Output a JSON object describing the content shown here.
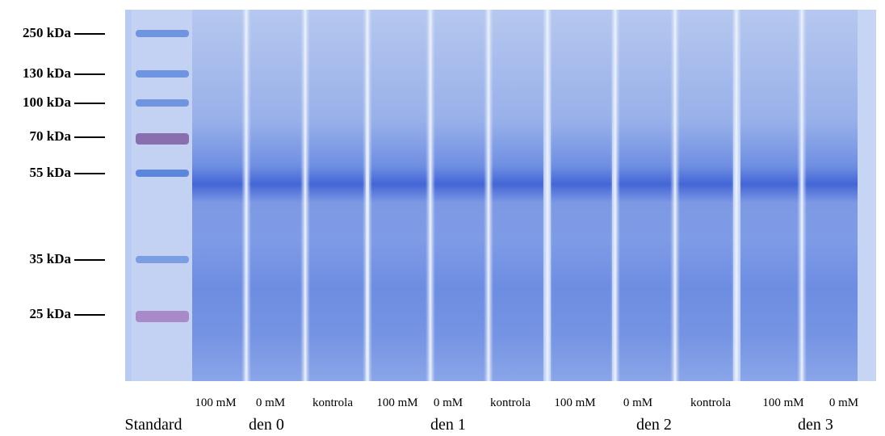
{
  "markers": [
    "250 kDa",
    "130 kDa",
    "100 kDa",
    "70 kDa",
    "55 kDa",
    "35 kDa",
    "25 kDa"
  ],
  "lanes": [
    "100 mM",
    "0 mM",
    "kontrola",
    "100 mM",
    "0 mM",
    "kontrola",
    "100 mM",
    "0 mM",
    "kontrola",
    "100 mM",
    "0 mM"
  ],
  "groups": [
    "Standard",
    "den 0",
    "den 1",
    "den 2",
    "den 3"
  ]
}
